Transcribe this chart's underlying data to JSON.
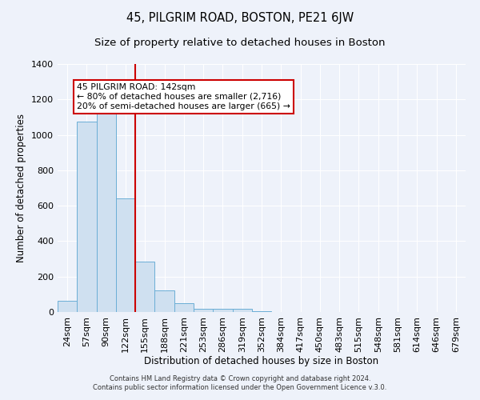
{
  "title": "45, PILGRIM ROAD, BOSTON, PE21 6JW",
  "subtitle": "Size of property relative to detached houses in Boston",
  "xlabel": "Distribution of detached houses by size in Boston",
  "ylabel": "Number of detached properties",
  "footer_line1": "Contains HM Land Registry data © Crown copyright and database right 2024.",
  "footer_line2": "Contains public sector information licensed under the Open Government Licence v.3.0.",
  "bar_labels": [
    "24sqm",
    "57sqm",
    "90sqm",
    "122sqm",
    "155sqm",
    "188sqm",
    "221sqm",
    "253sqm",
    "286sqm",
    "319sqm",
    "352sqm",
    "384sqm",
    "417sqm",
    "450sqm",
    "483sqm",
    "515sqm",
    "548sqm",
    "581sqm",
    "614sqm",
    "646sqm",
    "679sqm"
  ],
  "bar_values": [
    65,
    1075,
    1155,
    640,
    285,
    120,
    48,
    20,
    18,
    18,
    5,
    0,
    0,
    0,
    0,
    0,
    0,
    0,
    0,
    0,
    0
  ],
  "bar_color": "#cfe0f0",
  "bar_edge_color": "#6baed6",
  "vline_x": 3.5,
  "vline_color": "#cc0000",
  "annotation_text": "45 PILGRIM ROAD: 142sqm\n← 80% of detached houses are smaller (2,716)\n20% of semi-detached houses are larger (665) →",
  "annotation_box_color": "white",
  "annotation_box_edge": "#cc0000",
  "ylim": [
    0,
    1400
  ],
  "yticks": [
    0,
    200,
    400,
    600,
    800,
    1000,
    1200,
    1400
  ],
  "background_color": "#eef2fa",
  "grid_color": "#ffffff",
  "title_fontsize": 10.5,
  "subtitle_fontsize": 9.5
}
